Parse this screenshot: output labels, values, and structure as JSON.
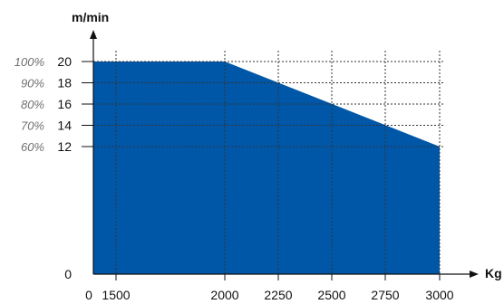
{
  "chart_data": {
    "type": "area",
    "x": [
      0,
      2000,
      3000
    ],
    "series": [
      {
        "values": [
          20,
          20,
          12
        ]
      }
    ],
    "xticks": [
      0,
      1500,
      2000,
      2250,
      2500,
      2750,
      3000
    ],
    "xtick_labels": [
      "0",
      "1500",
      "2000",
      "2250",
      "2500",
      "2750",
      "3000"
    ],
    "yticks": [
      0,
      12,
      14,
      16,
      18,
      20
    ],
    "ytick_labels": [
      "0",
      "12",
      "14",
      "16",
      "18",
      "20"
    ],
    "percent_labels": [
      {
        "y": 20,
        "text": "100%"
      },
      {
        "y": 18,
        "text": "90%"
      },
      {
        "y": 16,
        "text": "80%"
      },
      {
        "y": 14,
        "text": "70%"
      },
      {
        "y": 12,
        "text": "60%"
      }
    ],
    "xlabel": "Kg",
    "ylabel": "m/min",
    "grid": true,
    "fill_color": "#0057a8",
    "axis_color": "#111111",
    "grid_color": "#333333"
  }
}
